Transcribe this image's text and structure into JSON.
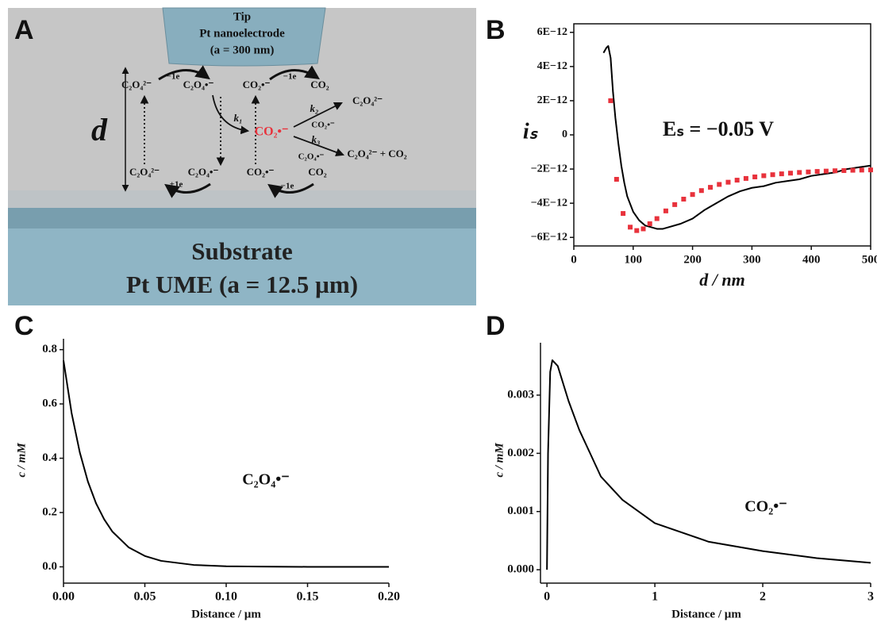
{
  "panels": [
    "A",
    "B",
    "C",
    "D"
  ],
  "diagram": {
    "tip": [
      "Tip",
      "Pt nanoelectrode",
      "(a = 300 nm)"
    ],
    "distance": "d",
    "substrate": [
      "Substrate",
      "Pt UME (a = 12.5 µm)"
    ],
    "species": [
      "C₂O₄²⁻",
      "−1e",
      "C₂O₄•⁻",
      "CO₂•⁻",
      "−1e",
      "CO₂",
      "k₁",
      "CO₂•⁻",
      "k₂",
      "C₂O₄²⁻",
      "CO₂•⁻",
      "k₃",
      "C₂O₄•⁻",
      "C₂O₄²⁻ + CO₂",
      "C₂O₄²⁻",
      "C₂O₄•⁻",
      "+1e",
      "CO₂•⁻",
      "CO₂",
      "−1e"
    ]
  },
  "chart_data": [
    {
      "type": "line",
      "xlabel": "d / nm",
      "ylabel": "iₛ",
      "annotation": "Eₛ = −0.05 V",
      "xlim": [
        0,
        500
      ],
      "xticks": [
        0,
        100,
        200,
        300,
        400,
        500
      ],
      "ylim": [
        -6.5e-12,
        6.5e-12
      ],
      "yticks": [
        {
          "value": 6e-12,
          "label": "6E−12"
        },
        {
          "value": 4e-12,
          "label": "4E−12"
        },
        {
          "value": 2e-12,
          "label": "2E−12"
        },
        0,
        {
          "value": -2e-12,
          "label": "−2E−12"
        },
        {
          "value": -4e-12,
          "label": "−4E−12"
        },
        {
          "value": -6e-12,
          "label": "−6E−12"
        }
      ],
      "series": [
        {
          "type": "line",
          "color": "#000000",
          "x": [
            50,
            55,
            58,
            62,
            66,
            70,
            75,
            80,
            85,
            90,
            100,
            110,
            120,
            130,
            140,
            150,
            160,
            180,
            200,
            220,
            240,
            260,
            280,
            300,
            320,
            340,
            360,
            380,
            400,
            420,
            440,
            460,
            480,
            500
          ],
          "values": [
            4.8e-12,
            5.1e-12,
            5.2e-12,
            4.5e-12,
            2.5e-12,
            1e-12,
            -5e-13,
            -1.8e-12,
            -2.8e-12,
            -3.6e-12,
            -4.5e-12,
            -5e-12,
            -5.3e-12,
            -5.4e-12,
            -5.5e-12,
            -5.5e-12,
            -5.4e-12,
            -5.2e-12,
            -4.9e-12,
            -4.4e-12,
            -4e-12,
            -3.6e-12,
            -3.3e-12,
            -3.1e-12,
            -3e-12,
            -2.8e-12,
            -2.7e-12,
            -2.6e-12,
            -2.4e-12,
            -2.3e-12,
            -2.2e-12,
            -2e-12,
            -1.9e-12,
            -1.8e-12
          ]
        },
        {
          "type": "scatter",
          "color": "#e8323c",
          "x": [
            62,
            72,
            83,
            95,
            106,
            117,
            128,
            140,
            155,
            170,
            185,
            200,
            215,
            230,
            245,
            260,
            275,
            290,
            305,
            320,
            335,
            350,
            365,
            380,
            395,
            410,
            425,
            440,
            455,
            470,
            485,
            500
          ],
          "values": [
            2e-12,
            -2.6e-12,
            -4.6e-12,
            -5.4e-12,
            -5.6e-12,
            -5.5e-12,
            -5.2e-12,
            -4.9e-12,
            -4.45e-12,
            -4.08e-12,
            -3.76e-12,
            -3.49e-12,
            -3.26e-12,
            -3.07e-12,
            -2.9e-12,
            -2.77e-12,
            -2.65e-12,
            -2.55e-12,
            -2.46e-12,
            -2.39e-12,
            -2.33e-12,
            -2.28e-12,
            -2.24e-12,
            -2.2e-12,
            -2.17e-12,
            -2.14e-12,
            -2.12e-12,
            -2.1e-12,
            -2.09e-12,
            -2.07e-12,
            -2.06e-12,
            -2.05e-12
          ]
        }
      ]
    },
    {
      "type": "line",
      "xlabel": "Distance / µm",
      "ylabel": "c / mM",
      "annotation": "C₂O₄•⁻",
      "xlim": [
        0,
        0.2
      ],
      "xticks": [
        {
          "value": 0,
          "label": "0.00"
        },
        0.05,
        {
          "value": 0.1,
          "label": "0.10"
        },
        0.15,
        {
          "value": 0.2,
          "label": "0.20"
        }
      ],
      "ylim": [
        -0.06,
        0.84
      ],
      "yticks": [
        {
          "value": 0,
          "label": "0.0"
        },
        0.2,
        0.4,
        0.6,
        0.8
      ],
      "x": [
        0,
        0.005,
        0.01,
        0.015,
        0.02,
        0.025,
        0.03,
        0.04,
        0.05,
        0.06,
        0.08,
        0.1,
        0.12,
        0.15,
        0.2
      ],
      "series": [
        {
          "type": "line",
          "color": "#000000",
          "values": [
            0.76,
            0.566,
            0.422,
            0.314,
            0.234,
            0.175,
            0.13,
            0.072,
            0.04,
            0.022,
            0.007,
            0.002,
            0.001,
            0,
            0
          ]
        }
      ]
    },
    {
      "type": "line",
      "xlabel": "Distance / µm",
      "ylabel": "c / mM",
      "annotation": "CO₂•⁻",
      "xlim": [
        -0.06,
        3
      ],
      "xticks": [
        0,
        1,
        2,
        3
      ],
      "ylim": [
        -0.00023,
        0.0039
      ],
      "yticks": [
        {
          "value": 0,
          "label": "0.000"
        },
        0.001,
        0.002,
        0.003
      ],
      "x": [
        0,
        0.01,
        0.03,
        0.05,
        0.1,
        0.2,
        0.3,
        0.4,
        0.5,
        0.7,
        1.0,
        1.5,
        2.0,
        2.5,
        3.0
      ],
      "series": [
        {
          "type": "line",
          "color": "#000000",
          "values": [
            0,
            0.002,
            0.0034,
            0.0036,
            0.0035,
            0.0029,
            0.0024,
            0.002,
            0.0016,
            0.0012,
            0.0008,
            0.00048,
            0.00032,
            0.0002,
            0.00012
          ]
        }
      ]
    }
  ]
}
